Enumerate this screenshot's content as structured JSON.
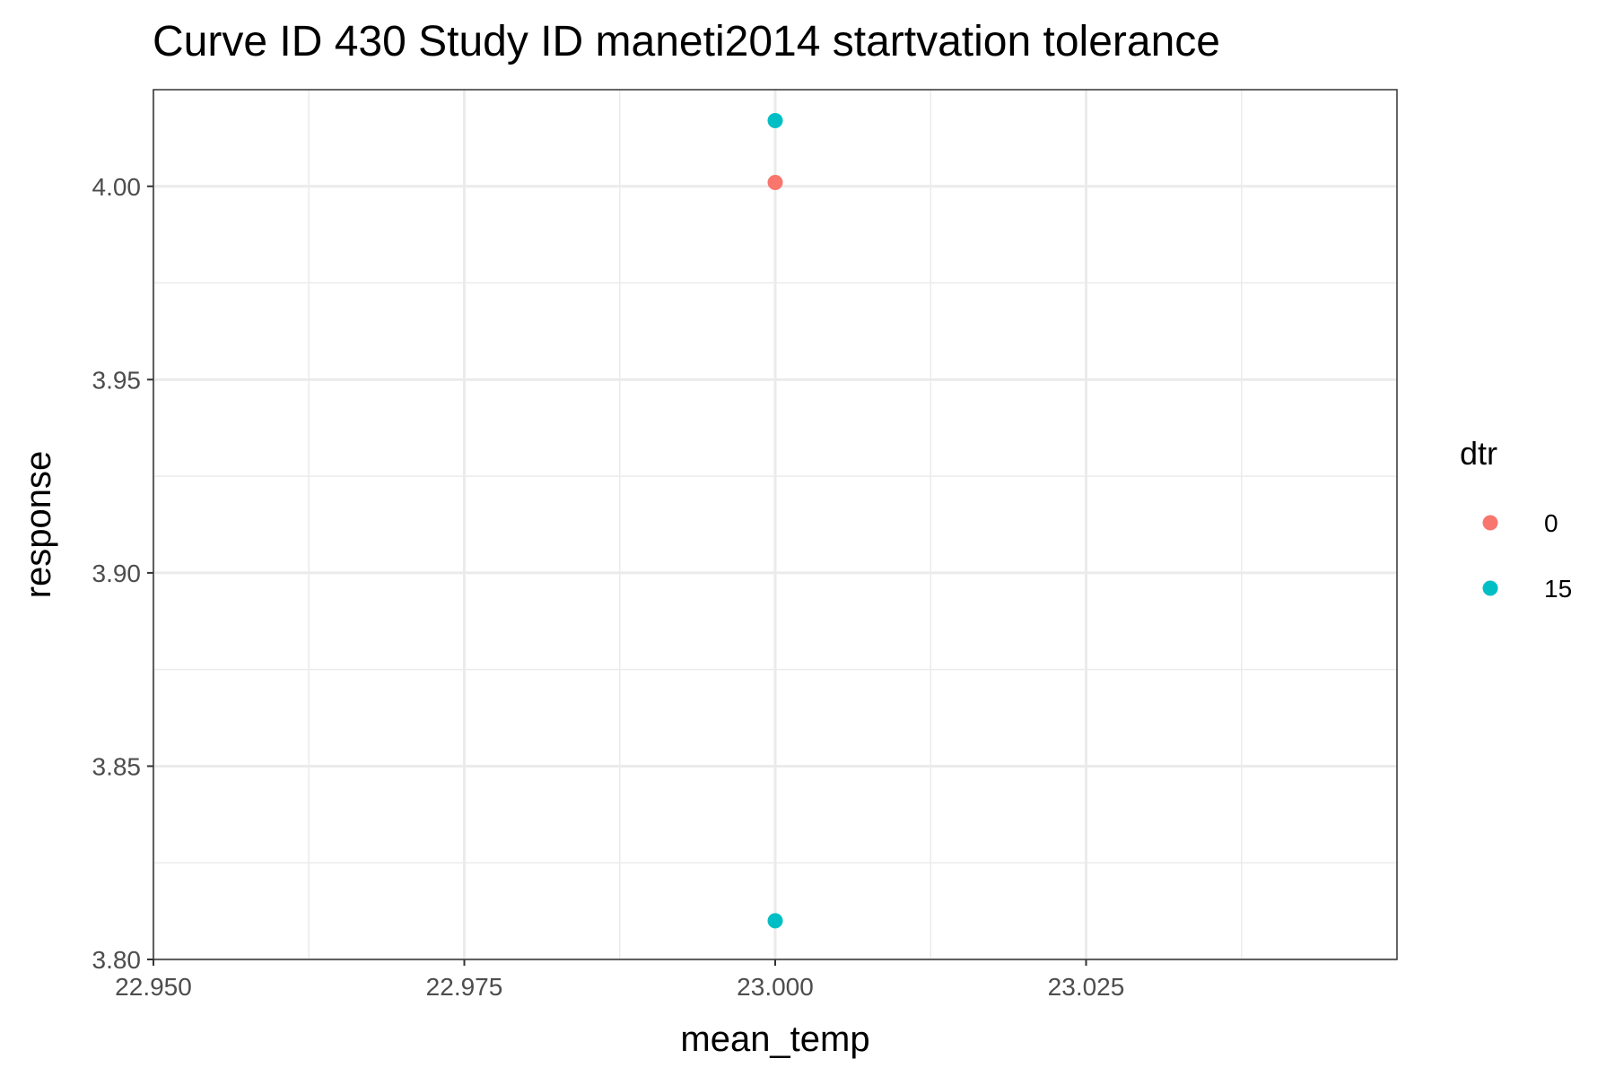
{
  "chart_data": {
    "type": "scatter",
    "title": "Curve ID 430 Study ID maneti2014 startvation tolerance",
    "xlabel": "mean_temp",
    "ylabel": "response",
    "xlim": [
      22.95,
      23.05
    ],
    "ylim": [
      3.8,
      4.025
    ],
    "x_ticks": [
      22.95,
      22.975,
      23.0,
      23.025
    ],
    "x_tick_labels": [
      "22.950",
      "22.975",
      "23.000",
      "23.025"
    ],
    "y_ticks": [
      3.8,
      3.85,
      3.9,
      3.95,
      4.0
    ],
    "y_tick_labels": [
      "3.80",
      "3.85",
      "3.90",
      "3.95",
      "4.00"
    ],
    "grid": true,
    "legend": {
      "title": "dtr",
      "position": "right",
      "entries": [
        {
          "label": "0",
          "color": "#F8766D"
        },
        {
          "label": "15",
          "color": "#00BFC4"
        }
      ]
    },
    "series": [
      {
        "name": "0",
        "color": "#F8766D",
        "points": [
          {
            "x": 23.0,
            "y": 4.001
          }
        ]
      },
      {
        "name": "15",
        "color": "#00BFC4",
        "points": [
          {
            "x": 23.0,
            "y": 4.017
          },
          {
            "x": 23.0,
            "y": 3.81
          }
        ]
      }
    ]
  }
}
